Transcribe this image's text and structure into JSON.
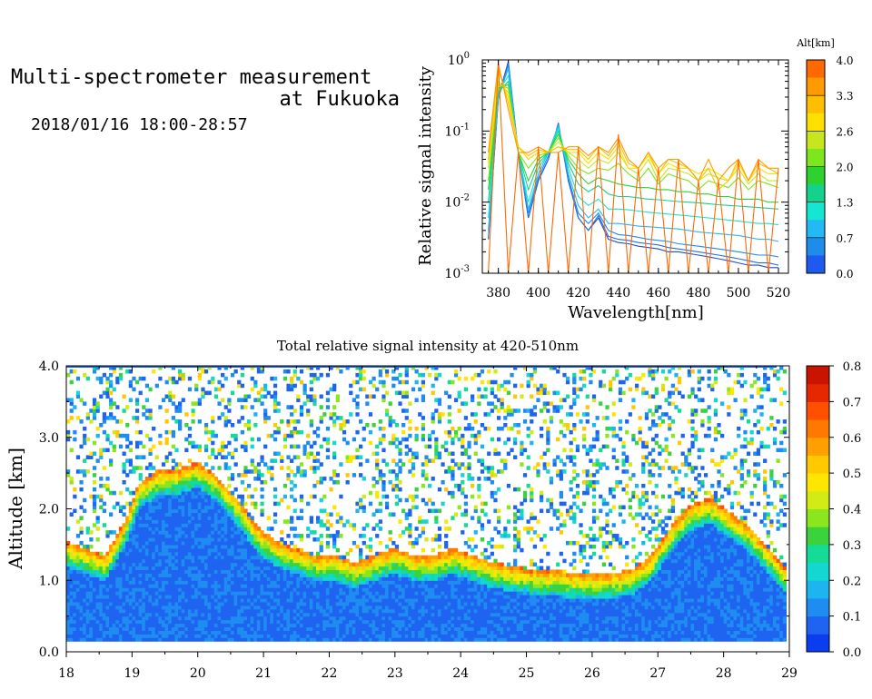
{
  "header": {
    "title_line1": "Multi-spectrometer measurement",
    "title_line2": "at Fukuoka",
    "datetime": "2018/01/16 18:00-28:57"
  },
  "chart_data": [
    {
      "type": "line",
      "ylabel": "Relative signal intensity",
      "xlabel": "Wavelength[nm]",
      "yscale": "log",
      "xlim": [
        372,
        525
      ],
      "ylim": [
        0.001,
        1
      ],
      "xticks": [
        "380",
        "400",
        "420",
        "440",
        "460",
        "480",
        "500",
        "520"
      ],
      "yticks": [
        {
          "base": "10",
          "exp": "0"
        },
        {
          "base": "10",
          "exp": "-1"
        },
        {
          "base": "10",
          "exp": "-2"
        },
        {
          "base": "10",
          "exp": "-3"
        }
      ],
      "colorbar": {
        "label": "Alt[km]",
        "ticks": [
          "4.0",
          "3.3",
          "2.6",
          "2.0",
          "1.3",
          "0.7",
          "0.0"
        ],
        "colors": [
          "#ff6a00",
          "#ff9a00",
          "#ffbf00",
          "#ffdf00",
          "#c8e61e",
          "#7de61e",
          "#2ed22e",
          "#14d28c",
          "#14e6d2",
          "#23b9f5",
          "#1e8ceb",
          "#1e5af0"
        ]
      },
      "x": [
        375,
        380,
        385,
        390,
        395,
        400,
        405,
        410,
        415,
        420,
        425,
        430,
        435,
        440,
        445,
        450,
        455,
        460,
        465,
        470,
        475,
        480,
        485,
        490,
        495,
        500,
        505,
        510,
        515,
        520
      ],
      "series": [
        {
          "color": "#1e4bd2",
          "values": [
            0.003,
            0.3,
            0.95,
            0.05,
            0.006,
            0.02,
            0.04,
            0.13,
            0.02,
            0.006,
            0.004,
            0.006,
            0.003,
            0.0027,
            0.0026,
            0.0024,
            0.0023,
            0.0022,
            0.002,
            0.002,
            0.0019,
            0.0018,
            0.0017,
            0.0016,
            0.0015,
            0.0014,
            0.0013,
            0.0013,
            0.0012,
            0.0012
          ]
        },
        {
          "color": "#1e6ee6",
          "values": [
            0.003,
            0.28,
            0.9,
            0.05,
            0.006,
            0.02,
            0.04,
            0.12,
            0.02,
            0.006,
            0.004,
            0.0065,
            0.0033,
            0.003,
            0.0029,
            0.0027,
            0.0026,
            0.0025,
            0.0023,
            0.0022,
            0.0021,
            0.002,
            0.0019,
            0.0018,
            0.0017,
            0.0016,
            0.0015,
            0.0014,
            0.0014,
            0.0013
          ]
        },
        {
          "color": "#1e8ceb",
          "values": [
            0.003,
            0.3,
            0.85,
            0.05,
            0.007,
            0.022,
            0.045,
            0.12,
            0.022,
            0.007,
            0.005,
            0.007,
            0.004,
            0.0035,
            0.0034,
            0.0032,
            0.003,
            0.0029,
            0.0028,
            0.0026,
            0.0025,
            0.0024,
            0.0023,
            0.0022,
            0.0021,
            0.002,
            0.0019,
            0.0018,
            0.0018,
            0.0017
          ]
        },
        {
          "color": "#23b9f5",
          "values": [
            0.004,
            0.3,
            0.75,
            0.05,
            0.008,
            0.025,
            0.05,
            0.12,
            0.025,
            0.009,
            0.006,
            0.008,
            0.005,
            0.005,
            0.0048,
            0.0046,
            0.0045,
            0.0044,
            0.0043,
            0.0042,
            0.004,
            0.0038,
            0.0037,
            0.0036,
            0.0035,
            0.0034,
            0.0032,
            0.003,
            0.003,
            0.0028
          ]
        },
        {
          "color": "#14e6d2",
          "values": [
            0.006,
            0.35,
            0.6,
            0.05,
            0.01,
            0.03,
            0.05,
            0.11,
            0.03,
            0.012,
            0.009,
            0.011,
            0.008,
            0.008,
            0.0078,
            0.0075,
            0.0072,
            0.007,
            0.0068,
            0.0066,
            0.0064,
            0.0062,
            0.006,
            0.0058,
            0.0056,
            0.0054,
            0.0052,
            0.005,
            0.005,
            0.0048
          ]
        },
        {
          "color": "#14d28c",
          "values": [
            0.01,
            0.35,
            0.5,
            0.05,
            0.015,
            0.035,
            0.05,
            0.1,
            0.035,
            0.018,
            0.014,
            0.017,
            0.013,
            0.012,
            0.012,
            0.0115,
            0.011,
            0.0108,
            0.0105,
            0.0102,
            0.01,
            0.0098,
            0.0095,
            0.0092,
            0.009,
            0.0088,
            0.0086,
            0.0084,
            0.0082,
            0.008
          ]
        },
        {
          "color": "#2ed22e",
          "values": [
            0.015,
            0.4,
            0.45,
            0.05,
            0.02,
            0.04,
            0.05,
            0.09,
            0.04,
            0.025,
            0.018,
            0.022,
            0.02,
            0.018,
            0.017,
            0.016,
            0.016,
            0.015,
            0.015,
            0.014,
            0.014,
            0.013,
            0.013,
            0.012,
            0.012,
            0.011,
            0.011,
            0.011,
            0.01,
            0.01
          ]
        },
        {
          "color": "#7de61e",
          "values": [
            0.02,
            0.45,
            0.4,
            0.05,
            0.03,
            0.045,
            0.05,
            0.08,
            0.045,
            0.03,
            0.025,
            0.03,
            0.028,
            0.035,
            0.025,
            0.02,
            0.03,
            0.018,
            0.025,
            0.022,
            0.02,
            0.015,
            0.02,
            0.018,
            0.016,
            0.022,
            0.015,
            0.02,
            0.018,
            0.016
          ]
        },
        {
          "color": "#c8e61e",
          "values": [
            0.03,
            0.5,
            0.35,
            0.06,
            0.04,
            0.05,
            0.05,
            0.07,
            0.05,
            0.04,
            0.03,
            0.04,
            0.035,
            0.05,
            0.03,
            0.025,
            0.04,
            0.02,
            0.03,
            0.028,
            0.025,
            0.02,
            0.025,
            0.022,
            0.02,
            0.03,
            0.018,
            0.025,
            0.02,
            0.02
          ]
        },
        {
          "color": "#ffdf00",
          "values": [
            0.035,
            0.7,
            0.3,
            0.06,
            0.04,
            0.05,
            0.05,
            0.06,
            0.05,
            0.05,
            0.035,
            0.05,
            0.04,
            0.06,
            0.03,
            0.03,
            0.045,
            0.025,
            0.035,
            0.03,
            0.03,
            0.025,
            0.03,
            0.025,
            0.02,
            0.035,
            0.02,
            0.03,
            0.025,
            0.025
          ]
        },
        {
          "color": "#ffbf00",
          "values": [
            0.04,
            0.8,
            0.25,
            0.06,
            0.045,
            0.055,
            0.05,
            0.06,
            0.055,
            0.055,
            0.04,
            0.06,
            0.045,
            0.07,
            0.035,
            0.03,
            0.05,
            0.025,
            0.04,
            0.035,
            0.03,
            0.02,
            0.03,
            0.015,
            0.02,
            0.04,
            0.02,
            0.035,
            0.03,
            0.025
          ]
        },
        {
          "color": "#ff9a00",
          "values": [
            0.05,
            0.9,
            0.2,
            0.05,
            0.05,
            0.06,
            0.05,
            0.05,
            0.06,
            0.06,
            0.045,
            0.06,
            0.05,
            0.08,
            0.04,
            0.03,
            0.05,
            0.03,
            0.04,
            0.04,
            0.03,
            0.02,
            0.04,
            0.02,
            0.03,
            0.04,
            0.02,
            0.04,
            0.03,
            0.03
          ]
        },
        {
          "color": "#ff6a00",
          "values": [
            0.001,
            0.9,
            0.001,
            0.05,
            0.001,
            0.06,
            0.001,
            0.05,
            0.001,
            0.06,
            0.001,
            0.06,
            0.001,
            0.09,
            0.001,
            0.03,
            0.001,
            0.03,
            0.001,
            0.04,
            0.001,
            0.02,
            0.001,
            0.02,
            0.001,
            0.04,
            0.001,
            0.04,
            0.001,
            0.03
          ]
        }
      ]
    },
    {
      "type": "heatmap",
      "title": "Total relative signal intensity at 420-510nm",
      "ylabel": "Altitude [km]",
      "xlim": [
        18,
        29
      ],
      "ylim": [
        0,
        4
      ],
      "xticks": [
        "18",
        "19",
        "20",
        "21",
        "22",
        "23",
        "24",
        "25",
        "26",
        "27",
        "28",
        "29"
      ],
      "yticks": [
        "0.0",
        "1.0",
        "2.0",
        "3.0",
        "4.0"
      ],
      "data_range_x": [
        18,
        28.95
      ],
      "data_range_y": [
        0.15,
        4.0
      ],
      "boundary_layer_top_km": [
        [
          18.0,
          1.4
        ],
        [
          18.3,
          1.3
        ],
        [
          18.6,
          1.2
        ],
        [
          18.9,
          1.7
        ],
        [
          19.1,
          2.2
        ],
        [
          19.4,
          2.4
        ],
        [
          19.7,
          2.4
        ],
        [
          20.0,
          2.5
        ],
        [
          20.3,
          2.3
        ],
        [
          20.6,
          2.0
        ],
        [
          20.9,
          1.6
        ],
        [
          21.2,
          1.4
        ],
        [
          21.5,
          1.3
        ],
        [
          21.8,
          1.2
        ],
        [
          22.1,
          1.2
        ],
        [
          22.4,
          1.1
        ],
        [
          22.7,
          1.2
        ],
        [
          23.0,
          1.3
        ],
        [
          23.3,
          1.2
        ],
        [
          23.6,
          1.2
        ],
        [
          23.9,
          1.3
        ],
        [
          24.2,
          1.2
        ],
        [
          24.5,
          1.1
        ],
        [
          24.8,
          1.05
        ],
        [
          25.1,
          1.0
        ],
        [
          25.4,
          1.0
        ],
        [
          25.7,
          0.95
        ],
        [
          26.0,
          0.95
        ],
        [
          26.3,
          0.95
        ],
        [
          26.6,
          1.0
        ],
        [
          26.9,
          1.2
        ],
        [
          27.2,
          1.6
        ],
        [
          27.5,
          1.9
        ],
        [
          27.8,
          2.0
        ],
        [
          28.1,
          1.8
        ],
        [
          28.4,
          1.6
        ],
        [
          28.7,
          1.3
        ],
        [
          28.95,
          1.0
        ]
      ],
      "colorbar": {
        "ticks": [
          "0.8",
          "0.7",
          "0.6",
          "0.5",
          "0.4",
          "0.3",
          "0.2",
          "0.1",
          "0.0"
        ],
        "colors": [
          "#0a3cf0",
          "#1e64f0",
          "#1e8cf0",
          "#1eb4f0",
          "#14d7d2",
          "#14dc96",
          "#3cd23c",
          "#8ce61e",
          "#d2eb14",
          "#ffe600",
          "#ffc800",
          "#ffa000",
          "#ff7800",
          "#ff5000",
          "#e62800",
          "#c81400"
        ]
      }
    }
  ]
}
